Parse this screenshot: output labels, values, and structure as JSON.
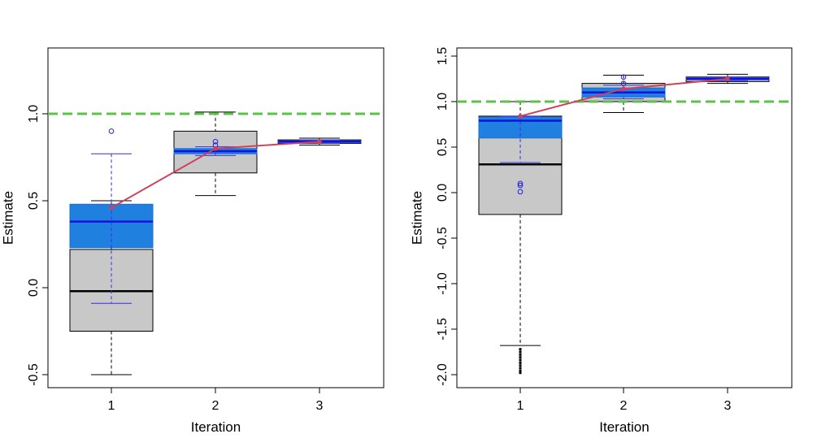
{
  "chart_data": [
    {
      "type": "box",
      "title": "",
      "xlabel": "Iteration",
      "ylabel": "Estimate",
      "categories": [
        "1",
        "2",
        "3"
      ],
      "ylim": [
        -0.57,
        1.4
      ],
      "yticks": [
        "-0.5",
        "0.0",
        "0.5",
        "1.0"
      ],
      "ytick_values": [
        -0.5,
        0.0,
        0.5,
        1.0
      ],
      "reference_line": {
        "value": 1.0,
        "color": "#5cc24a",
        "style": "dashed"
      },
      "series": [
        {
          "name": "",
          "color": "#c8c8c8",
          "boxes": [
            {
              "q1": -0.25,
              "median": -0.02,
              "q3": 0.22,
              "whisker_low": -0.5,
              "whisker_high": 0.5,
              "outliers": []
            },
            {
              "q1": 0.66,
              "median": 0.78,
              "q3": 0.9,
              "whisker_low": 0.53,
              "whisker_high": 1.01,
              "outliers": []
            },
            {
              "q1": 0.83,
              "median": 0.84,
              "q3": 0.85,
              "whisker_low": 0.82,
              "whisker_high": 0.86,
              "outliers": []
            }
          ]
        },
        {
          "name": "",
          "color": "#1f80e0",
          "boxes": [
            {
              "q1": 0.23,
              "median": 0.38,
              "q3": 0.48,
              "whisker_low": -0.09,
              "whisker_high": 0.77,
              "outliers": [
                0.9
              ]
            },
            {
              "q1": 0.77,
              "median": 0.785,
              "q3": 0.8,
              "whisker_low": 0.76,
              "whisker_high": 0.81,
              "outliers": [
                0.82,
                0.84
              ]
            },
            {
              "q1": 0.835,
              "median": 0.84,
              "q3": 0.845,
              "whisker_low": 0.83,
              "whisker_high": 0.85,
              "outliers": []
            }
          ]
        }
      ],
      "trend_line": {
        "color": "#d0405a",
        "values": [
          0.46,
          0.8,
          0.84
        ]
      }
    },
    {
      "type": "box",
      "title": "",
      "xlabel": "Iteration",
      "ylabel": "Estimate",
      "categories": [
        "1",
        "2",
        "3"
      ],
      "ylim": [
        -2.1,
        1.6
      ],
      "yticks": [
        "-2.0",
        "-1.5",
        "-1.0",
        "-0.5",
        "0.0",
        "0.5",
        "1.0",
        "1.5"
      ],
      "ytick_values": [
        -2.0,
        -1.5,
        -1.0,
        -0.5,
        0.0,
        0.5,
        1.0,
        1.5
      ],
      "reference_line": {
        "value": 1.0,
        "color": "#5cc24a",
        "style": "dashed"
      },
      "series": [
        {
          "name": "",
          "color": "#c8c8c8",
          "boxes": [
            {
              "q1": -0.24,
              "median": 0.31,
              "q3": 0.84,
              "whisker_low": -1.68,
              "whisker_high": 1.0,
              "outliers": [
                -1.72,
                -1.75,
                -1.78,
                -1.81,
                -1.84,
                -1.87,
                -1.9,
                -1.93,
                -1.96,
                -1.98
              ]
            },
            {
              "q1": 1.0,
              "median": 1.1,
              "q3": 1.2,
              "whisker_low": 0.88,
              "whisker_high": 1.29,
              "outliers": []
            },
            {
              "q1": 1.22,
              "median": 1.25,
              "q3": 1.27,
              "whisker_low": 1.2,
              "whisker_high": 1.3,
              "outliers": []
            }
          ]
        },
        {
          "name": "",
          "color": "#1f80e0",
          "boxes": [
            {
              "q1": 0.6,
              "median": 0.79,
              "q3": 0.83,
              "whisker_low": 0.33,
              "whisker_high": 0.84,
              "outliers": [
                0.1,
                0.08,
                0.01
              ]
            },
            {
              "q1": 1.05,
              "median": 1.1,
              "q3": 1.15,
              "whisker_low": 1.03,
              "whisker_high": 1.18,
              "outliers": [
                1.2,
                1.27
              ]
            },
            {
              "q1": 1.24,
              "median": 1.25,
              "q3": 1.26,
              "whisker_low": 1.23,
              "whisker_high": 1.27,
              "outliers": []
            }
          ]
        }
      ],
      "trend_line": {
        "color": "#d0405a",
        "values": [
          0.84,
          1.14,
          1.25
        ]
      }
    }
  ]
}
